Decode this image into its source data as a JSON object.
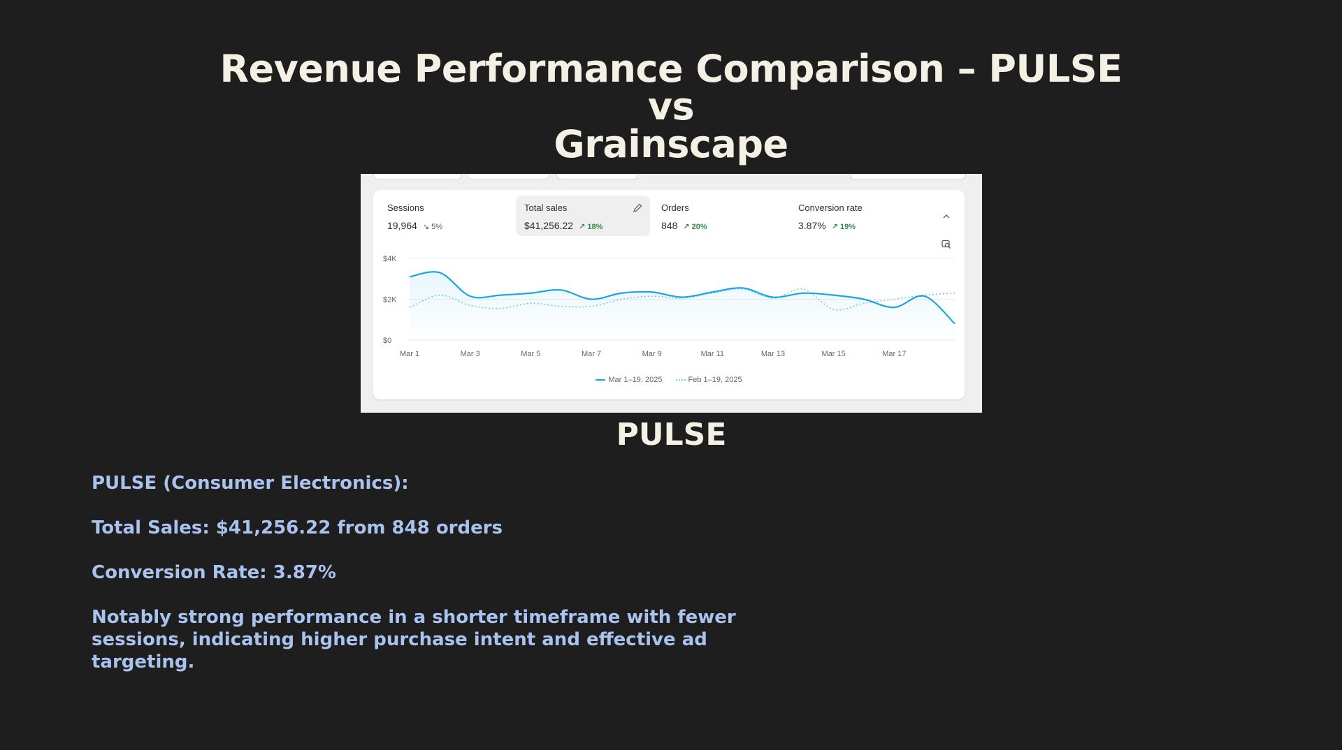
{
  "slide": {
    "title_line1": "Revenue Performance Comparison – PULSE vs",
    "title_line2": "Grainscape",
    "caption": "PULSE"
  },
  "metrics": [
    {
      "label": "Sessions",
      "value": "19,964",
      "change": "5%",
      "direction": "down"
    },
    {
      "label": "Total sales",
      "value": "$41,256.22",
      "change": "18%",
      "direction": "up"
    },
    {
      "label": "Orders",
      "value": "848",
      "change": "20%",
      "direction": "up"
    },
    {
      "label": "Conversion rate",
      "value": "3.87%",
      "change": "19%",
      "direction": "up"
    }
  ],
  "icons": {
    "edit": "pencil-icon",
    "collapse": "chevron-up-icon",
    "inspect": "magnifier-icon"
  },
  "chart_data": {
    "type": "line",
    "y_ticks": [
      "$4K",
      "$2K",
      "$0"
    ],
    "ylim": [
      0,
      4000
    ],
    "x_ticks": [
      "Mar 1",
      "Mar 3",
      "Mar 5",
      "Mar 7",
      "Mar 9",
      "Mar 11",
      "Mar 13",
      "Mar 15",
      "Mar 17"
    ],
    "grid": true,
    "legend_position": "bottom",
    "series": [
      {
        "name": "Mar 1–19, 2025",
        "color": "#1aa6e4",
        "style": "solid",
        "values": [
          3100,
          3300,
          2150,
          2200,
          2300,
          2450,
          2000,
          2300,
          2350,
          2100,
          2350,
          2550,
          2100,
          2300,
          2200,
          2000,
          1600,
          2150,
          800
        ]
      },
      {
        "name": "Feb 1–19, 2025",
        "color": "#7fc7e8",
        "style": "dotted",
        "values": [
          1600,
          2200,
          1700,
          1550,
          1800,
          1650,
          1650,
          2000,
          2150,
          2050,
          2300,
          2500,
          2050,
          2500,
          1500,
          1800,
          2000,
          2200,
          2300
        ]
      }
    ]
  },
  "notes": [
    "PULSE (Consumer Electronics):",
    "Total Sales: $41,256.22 from 848 orders",
    "Conversion Rate: 3.87%",
    "Notably strong performance in a shorter timeframe with fewer sessions, indicating higher purchase intent and effective ad targeting."
  ]
}
